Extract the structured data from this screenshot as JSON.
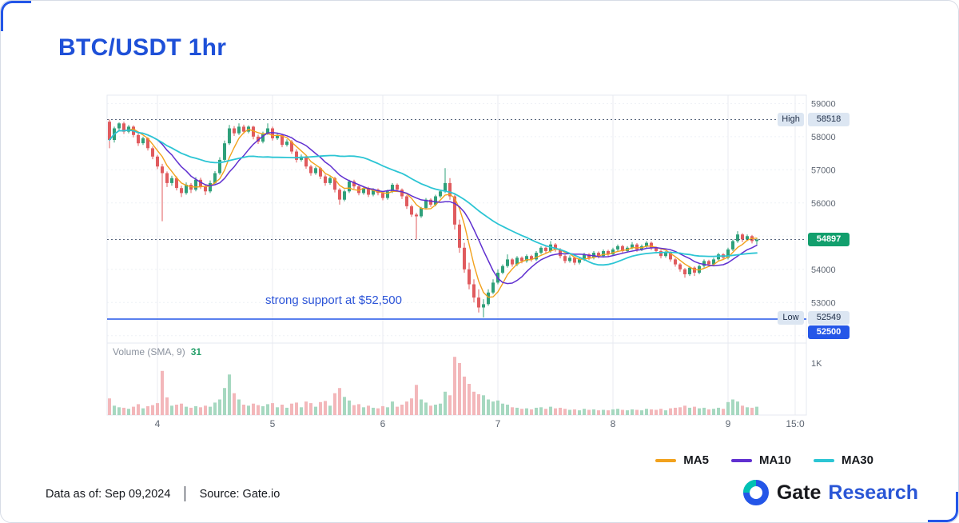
{
  "page": {
    "title": "BTC/USDT 1hr",
    "footer": {
      "data_as_of": "Data as of: Sep 09,2024",
      "separator": "|",
      "source": "Source: Gate.io"
    },
    "brand": {
      "name_primary": "Gate",
      "name_secondary": "Research"
    }
  },
  "volume_header": {
    "label": "Volume (SMA, 9)",
    "value": "31"
  },
  "annotation": "strong support at $52,500",
  "badges": {
    "high_label": "High",
    "high_value": "58518",
    "last_value": "54897",
    "low_label": "Low",
    "low_value": "52549",
    "support_value": "52500"
  },
  "chart_data": {
    "type": "candlestick",
    "title": "BTC/USDT 1hr",
    "interval": "1 hour",
    "x_axis": {
      "tick_labels": [
        "4",
        "5",
        "6",
        "7",
        "8",
        "9",
        "15:0"
      ],
      "tick_index": [
        10,
        34,
        57,
        81,
        105,
        129,
        143
      ]
    },
    "y_axis": {
      "range": [
        51850,
        59250
      ],
      "ticks": [
        [
          59000,
          "59000"
        ],
        [
          58000,
          "58000"
        ],
        [
          57000,
          "57000"
        ],
        [
          56000,
          "56000"
        ],
        [
          54000,
          "54000"
        ],
        [
          53000,
          "53000"
        ]
      ],
      "grid_values": [
        59000,
        58000,
        57000,
        56000,
        55000,
        54000,
        53000,
        52000
      ],
      "volume_axis_label": "1K",
      "volume_unit": 1000
    },
    "markers": {
      "high": 58518,
      "last": 54897,
      "low": 52549,
      "support": 52500
    },
    "ma": [
      {
        "label": "MA5",
        "window": 5,
        "color": "#f2a21d",
        "width": 1.4
      },
      {
        "label": "MA10",
        "window": 10,
        "color": "#6030d0",
        "width": 1.5
      },
      {
        "label": "MA30",
        "window": 30,
        "color": "#2cc5d4",
        "width": 1.8
      }
    ],
    "colors": {
      "up": "#2fa07a",
      "down": "#e05b5e",
      "vol_up": "#a6d8c0",
      "vol_down": "#f3b7ba",
      "grid": "#eef1f6",
      "day_grid": "#e8ebf2",
      "border": "#e6e9f0",
      "marker_line": "#42506b",
      "support_line": "#2456e8",
      "axis_text": "#5f6773",
      "title_accent": "#1e50d8"
    },
    "candles": [
      [
        58450,
        58518,
        57650,
        57900,
        320
      ],
      [
        57900,
        58300,
        57820,
        58250,
        180
      ],
      [
        58250,
        58430,
        58180,
        58400,
        150
      ],
      [
        58400,
        58450,
        58080,
        58150,
        140
      ],
      [
        58150,
        58350,
        58100,
        58300,
        120
      ],
      [
        58300,
        58340,
        57980,
        58050,
        160
      ],
      [
        58050,
        58120,
        57720,
        57800,
        210
      ],
      [
        57800,
        58000,
        57750,
        57950,
        130
      ],
      [
        57950,
        57980,
        57580,
        57650,
        170
      ],
      [
        57650,
        57700,
        57320,
        57400,
        190
      ],
      [
        57400,
        57450,
        57020,
        57100,
        230
      ],
      [
        57100,
        57180,
        55450,
        56900,
        850
      ],
      [
        56900,
        56950,
        56480,
        56600,
        340
      ],
      [
        56600,
        56820,
        56520,
        56750,
        180
      ],
      [
        56750,
        56800,
        56380,
        56450,
        200
      ],
      [
        56450,
        56520,
        56180,
        56300,
        220
      ],
      [
        56300,
        56620,
        56250,
        56550,
        160
      ],
      [
        56550,
        56600,
        56300,
        56400,
        140
      ],
      [
        56400,
        56780,
        56350,
        56700,
        170
      ],
      [
        56700,
        56760,
        56420,
        56500,
        150
      ],
      [
        56500,
        56560,
        56240,
        56350,
        180
      ],
      [
        56350,
        56680,
        56300,
        56600,
        160
      ],
      [
        56600,
        56960,
        56550,
        56900,
        240
      ],
      [
        56900,
        57380,
        56850,
        57300,
        300
      ],
      [
        57300,
        57880,
        57250,
        57800,
        520
      ],
      [
        57800,
        58350,
        57750,
        58250,
        780
      ],
      [
        58250,
        58320,
        58020,
        58100,
        420
      ],
      [
        58100,
        58400,
        58050,
        58300,
        300
      ],
      [
        58300,
        58360,
        58080,
        58150,
        200
      ],
      [
        58150,
        58340,
        58100,
        58300,
        180
      ],
      [
        58300,
        58330,
        57920,
        58000,
        220
      ],
      [
        58000,
        58060,
        57780,
        57850,
        190
      ],
      [
        57850,
        58150,
        57800,
        58100,
        170
      ],
      [
        58100,
        58400,
        58050,
        58250,
        210
      ],
      [
        58250,
        58300,
        57880,
        57950,
        230
      ],
      [
        57950,
        58120,
        57900,
        58050,
        150
      ],
      [
        58050,
        58080,
        57680,
        57750,
        200
      ],
      [
        57750,
        57920,
        57700,
        57850,
        140
      ],
      [
        57850,
        57900,
        57480,
        57550,
        220
      ],
      [
        57550,
        57620,
        57220,
        57300,
        240
      ],
      [
        57300,
        57460,
        57250,
        57400,
        150
      ],
      [
        57400,
        57440,
        57030,
        57100,
        260
      ],
      [
        57100,
        57150,
        56820,
        56900,
        230
      ],
      [
        56900,
        57100,
        56850,
        57050,
        160
      ],
      [
        57050,
        57090,
        56720,
        56800,
        250
      ],
      [
        56800,
        56860,
        56520,
        56600,
        270
      ],
      [
        56600,
        56800,
        56550,
        56750,
        180
      ],
      [
        56750,
        56790,
        56320,
        56400,
        420
      ],
      [
        56400,
        56450,
        55950,
        56100,
        520
      ],
      [
        56100,
        56400,
        56050,
        56350,
        350
      ],
      [
        56350,
        56700,
        56300,
        56650,
        280
      ],
      [
        56650,
        56700,
        56430,
        56500,
        190
      ],
      [
        56500,
        56550,
        56230,
        56300,
        210
      ],
      [
        56300,
        56500,
        56250,
        56450,
        150
      ],
      [
        56450,
        56490,
        56180,
        56250,
        180
      ],
      [
        56250,
        56450,
        56200,
        56400,
        140
      ],
      [
        56400,
        56440,
        56230,
        56300,
        130
      ],
      [
        56300,
        56340,
        56080,
        56150,
        170
      ],
      [
        56150,
        56400,
        56100,
        56350,
        150
      ],
      [
        56350,
        56600,
        56300,
        56550,
        260
      ],
      [
        56550,
        56590,
        56330,
        56400,
        160
      ],
      [
        56400,
        56440,
        56120,
        56200,
        200
      ],
      [
        56200,
        56240,
        55820,
        55900,
        260
      ],
      [
        55900,
        55950,
        55580,
        55650,
        320
      ],
      [
        55650,
        55700,
        54900,
        55600,
        580
      ],
      [
        55600,
        55880,
        55550,
        55850,
        300
      ],
      [
        55850,
        56150,
        55800,
        56100,
        240
      ],
      [
        56100,
        56140,
        55880,
        55950,
        180
      ],
      [
        55950,
        56250,
        55900,
        56200,
        200
      ],
      [
        56200,
        56400,
        56150,
        56350,
        220
      ],
      [
        56350,
        57050,
        56300,
        56600,
        450
      ],
      [
        56600,
        56750,
        56100,
        56200,
        380
      ],
      [
        56200,
        56250,
        55200,
        55350,
        1120
      ],
      [
        55350,
        55500,
        54500,
        54650,
        1000
      ],
      [
        54650,
        54800,
        53900,
        54000,
        740
      ],
      [
        54000,
        54200,
        53400,
        53550,
        600
      ],
      [
        53550,
        53700,
        53000,
        53150,
        450
      ],
      [
        53150,
        53400,
        52700,
        52850,
        400
      ],
      [
        52850,
        53100,
        52549,
        52950,
        380
      ],
      [
        52950,
        53400,
        52900,
        53300,
        300
      ],
      [
        53300,
        53700,
        53250,
        53600,
        260
      ],
      [
        53600,
        54000,
        53550,
        53900,
        280
      ],
      [
        53900,
        54150,
        53850,
        54100,
        220
      ],
      [
        54100,
        54450,
        54050,
        54300,
        200
      ],
      [
        54300,
        54340,
        54080,
        54150,
        150
      ],
      [
        54150,
        54400,
        54100,
        54350,
        140
      ],
      [
        54350,
        54390,
        54180,
        54250,
        120
      ],
      [
        54250,
        54450,
        54200,
        54400,
        130
      ],
      [
        54400,
        54440,
        54230,
        54300,
        110
      ],
      [
        54300,
        54550,
        54250,
        54500,
        140
      ],
      [
        54500,
        54700,
        54450,
        54650,
        150
      ],
      [
        54650,
        54690,
        54480,
        54550,
        120
      ],
      [
        54550,
        54850,
        54500,
        54750,
        160
      ],
      [
        54750,
        54790,
        54530,
        54600,
        130
      ],
      [
        54600,
        54640,
        54330,
        54400,
        140
      ],
      [
        54400,
        54440,
        54180,
        54250,
        120
      ],
      [
        54250,
        54420,
        54200,
        54350,
        100
      ],
      [
        54350,
        54390,
        54130,
        54200,
        110
      ],
      [
        54200,
        54370,
        54150,
        54300,
        90
      ],
      [
        54300,
        54500,
        54250,
        54450,
        120
      ],
      [
        54450,
        54490,
        54280,
        54350,
        100
      ],
      [
        54350,
        54550,
        54300,
        54500,
        110
      ],
      [
        54500,
        54540,
        54330,
        54400,
        90
      ],
      [
        54400,
        54600,
        54350,
        54550,
        100
      ],
      [
        54550,
        54590,
        54380,
        54450,
        90
      ],
      [
        54450,
        54650,
        54400,
        54600,
        110
      ],
      [
        54600,
        54750,
        54550,
        54700,
        120
      ],
      [
        54700,
        54740,
        54480,
        54550,
        100
      ],
      [
        54550,
        54700,
        54500,
        54650,
        90
      ],
      [
        54650,
        54820,
        54600,
        54750,
        110
      ],
      [
        54750,
        54790,
        54530,
        54600,
        100
      ],
      [
        54600,
        54750,
        54550,
        54700,
        90
      ],
      [
        54700,
        54850,
        54650,
        54800,
        120
      ],
      [
        54800,
        54840,
        54580,
        54650,
        110
      ],
      [
        54650,
        54690,
        54480,
        54550,
        100
      ],
      [
        54550,
        54590,
        54330,
        54400,
        120
      ],
      [
        54400,
        54550,
        54350,
        54500,
        90
      ],
      [
        54500,
        54540,
        54230,
        54300,
        130
      ],
      [
        54300,
        54340,
        54080,
        54150,
        140
      ],
      [
        54150,
        54190,
        53930,
        54000,
        150
      ],
      [
        54000,
        54040,
        53750,
        53850,
        180
      ],
      [
        53850,
        54100,
        53800,
        54050,
        140
      ],
      [
        54050,
        54090,
        53800,
        53900,
        160
      ],
      [
        53900,
        54150,
        53850,
        54100,
        130
      ],
      [
        54100,
        54300,
        54050,
        54250,
        140
      ],
      [
        54250,
        54290,
        54080,
        54150,
        110
      ],
      [
        54150,
        54350,
        54100,
        54300,
        120
      ],
      [
        54300,
        54500,
        54250,
        54450,
        140
      ],
      [
        54450,
        54490,
        54280,
        54350,
        120
      ],
      [
        54350,
        54650,
        54300,
        54600,
        250
      ],
      [
        54600,
        54900,
        54550,
        54850,
        300
      ],
      [
        54850,
        55150,
        54800,
        55050,
        260
      ],
      [
        55050,
        55090,
        54820,
        54900,
        180
      ],
      [
        54900,
        55050,
        54850,
        55000,
        150
      ],
      [
        55000,
        55040,
        54780,
        54850,
        140
      ],
      [
        54850,
        54950,
        54750,
        54897,
        160
      ]
    ]
  }
}
